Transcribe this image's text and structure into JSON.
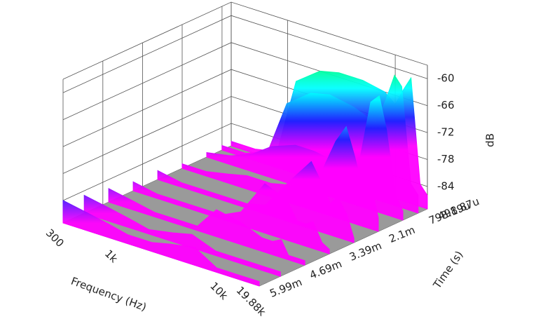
{
  "chart_data": {
    "type": "waterfall3d",
    "xlabel": "Frequency (Hz)",
    "ylabel": "Time (s)",
    "zlabel": "dB",
    "xscale": "log",
    "xlim": [
      300,
      19880
    ],
    "xticks": [
      300,
      {
        "value": 1000,
        "label": "1k"
      },
      {
        "value": 10000,
        "label": "10k"
      },
      {
        "value": 19880,
        "label": "19.88k"
      }
    ],
    "ylim": [
      0.00049887,
      0.00599
    ],
    "yticks": [
      {
        "value": 0.00049887,
        "label": "498.87u"
      },
      {
        "value": 0.00079819,
        "label": "798.19u"
      },
      {
        "value": 0.0021,
        "label": "2.1m"
      },
      {
        "value": 0.00339,
        "label": "3.39m"
      },
      {
        "value": 0.00469,
        "label": "4.69m"
      },
      {
        "value": 0.00599,
        "label": "5.99m"
      }
    ],
    "zlim": [
      -89,
      -57
    ],
    "zticks": [
      -60,
      -66,
      -72,
      -78,
      -84
    ],
    "grid": true,
    "floor_color": "#9a9a9a",
    "colormap": [
      "#ff00ff",
      "#2020ff",
      "#00ffff",
      "#00ff60",
      "#ffff00",
      "#ff2000"
    ],
    "x": [
      300,
      500,
      800,
      1200,
      2000,
      3000,
      5000,
      8000,
      10000,
      12000,
      14000,
      17000,
      19880
    ],
    "series": [
      {
        "t": 0.00049887,
        "values": [
          -88,
          -88,
          -87,
          -70,
          -66,
          -65,
          -65,
          -66,
          -68,
          -64,
          -61,
          -84,
          -86
        ]
      },
      {
        "t": 0.0008,
        "values": [
          -88,
          -88,
          -86,
          -74,
          -70,
          -69,
          -70,
          -72,
          -66,
          -60,
          -62,
          -83,
          -85
        ]
      },
      {
        "t": 0.0013,
        "values": [
          -88,
          -87,
          -85,
          -82,
          -80,
          -80,
          -81,
          -78,
          -65,
          -63,
          -70,
          -84,
          -87
        ]
      },
      {
        "t": 0.0021,
        "values": [
          -88,
          -88,
          -87,
          -86,
          -86,
          -85,
          -84,
          -72,
          -68,
          -74,
          -80,
          -79,
          -86
        ]
      },
      {
        "t": 0.0029,
        "values": [
          -87,
          -88,
          -88,
          -88,
          -88,
          -87,
          -80,
          -74,
          -78,
          -82,
          -80,
          -83,
          -88
        ]
      },
      {
        "t": 0.0037,
        "values": [
          -87,
          -88,
          -88,
          -88,
          -88,
          -86,
          -78,
          -80,
          -84,
          -84,
          -83,
          -87,
          -88
        ]
      },
      {
        "t": 0.0045,
        "values": [
          -86,
          -87,
          -88,
          -88,
          -88,
          -83,
          -84,
          -86,
          -86,
          -85,
          -88,
          -88,
          -88
        ]
      },
      {
        "t": 0.0053,
        "values": [
          -85,
          -86,
          -87,
          -88,
          -87,
          -86,
          -88,
          -88,
          -88,
          -88,
          -88,
          -88,
          -88
        ]
      },
      {
        "t": 0.00599,
        "values": [
          -84,
          -85,
          -86,
          -87,
          -87,
          -86,
          -85,
          -88,
          -88,
          -88,
          -88,
          -88,
          -88
        ]
      }
    ]
  }
}
